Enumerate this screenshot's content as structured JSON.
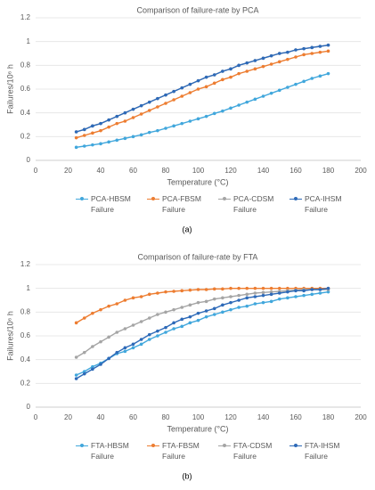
{
  "chart_data": [
    {
      "type": "line",
      "title": "Comparison of failure-rate by PCA",
      "x_label": "Temperature (°C)",
      "y_label": "Failures/10⁶ h",
      "caption": "(a)",
      "x": [
        25,
        30,
        35,
        40,
        45,
        50,
        55,
        60,
        65,
        70,
        75,
        80,
        85,
        90,
        95,
        100,
        105,
        110,
        115,
        120,
        125,
        130,
        135,
        140,
        145,
        150,
        155,
        160,
        165,
        170,
        175,
        180
      ],
      "xlim": [
        0,
        200
      ],
      "xticks": [
        0,
        20,
        40,
        60,
        80,
        100,
        120,
        140,
        160,
        180,
        200
      ],
      "ylim": [
        0,
        1.2
      ],
      "yticks": [
        0,
        0.2,
        0.4,
        0.6,
        0.8,
        1,
        1.2
      ],
      "grid": true,
      "series": [
        {
          "name": "PCA-HBSM Failure",
          "color": "#41a7dc",
          "values": [
            0.11,
            0.12,
            0.13,
            0.14,
            0.155,
            0.17,
            0.185,
            0.2,
            0.215,
            0.235,
            0.25,
            0.27,
            0.29,
            0.31,
            0.33,
            0.35,
            0.37,
            0.395,
            0.415,
            0.44,
            0.465,
            0.49,
            0.515,
            0.54,
            0.565,
            0.59,
            0.615,
            0.64,
            0.665,
            0.69,
            0.71,
            0.73
          ]
        },
        {
          "name": "PCA-FBSM Failure",
          "color": "#ed7d31",
          "values": [
            0.19,
            0.21,
            0.23,
            0.25,
            0.28,
            0.31,
            0.33,
            0.36,
            0.39,
            0.42,
            0.45,
            0.48,
            0.51,
            0.54,
            0.57,
            0.6,
            0.62,
            0.65,
            0.68,
            0.7,
            0.73,
            0.75,
            0.77,
            0.79,
            0.81,
            0.83,
            0.85,
            0.87,
            0.89,
            0.9,
            0.91,
            0.92
          ]
        },
        {
          "name": "PCA-CDSM Failure",
          "color": "#a5a5a5",
          "values": [
            0.24,
            0.26,
            0.29,
            0.31,
            0.34,
            0.37,
            0.4,
            0.43,
            0.46,
            0.49,
            0.52,
            0.55,
            0.58,
            0.61,
            0.64,
            0.67,
            0.7,
            0.72,
            0.75,
            0.77,
            0.8,
            0.82,
            0.84,
            0.86,
            0.88,
            0.9,
            0.91,
            0.93,
            0.94,
            0.95,
            0.96,
            0.97
          ]
        },
        {
          "name": "PCA-IHSM Failure",
          "color": "#2e6ab8",
          "values": [
            0.24,
            0.26,
            0.29,
            0.31,
            0.34,
            0.37,
            0.4,
            0.43,
            0.46,
            0.49,
            0.52,
            0.55,
            0.58,
            0.61,
            0.64,
            0.67,
            0.7,
            0.72,
            0.75,
            0.77,
            0.8,
            0.82,
            0.84,
            0.86,
            0.88,
            0.9,
            0.91,
            0.93,
            0.94,
            0.95,
            0.96,
            0.97
          ]
        }
      ]
    },
    {
      "type": "line",
      "title": "Comparison of failure-rate by FTA",
      "x_label": "Temperature (°C)",
      "y_label": "Failures/10⁶ h",
      "caption": "(b)",
      "x": [
        25,
        30,
        35,
        40,
        45,
        50,
        55,
        60,
        65,
        70,
        75,
        80,
        85,
        90,
        95,
        100,
        105,
        110,
        115,
        120,
        125,
        130,
        135,
        140,
        145,
        150,
        155,
        160,
        165,
        170,
        175,
        180
      ],
      "xlim": [
        0,
        200
      ],
      "xticks": [
        0,
        20,
        40,
        60,
        80,
        100,
        120,
        140,
        160,
        180,
        200
      ],
      "ylim": [
        0,
        1.2
      ],
      "yticks": [
        0,
        0.2,
        0.4,
        0.6,
        0.8,
        1,
        1.2
      ],
      "grid": true,
      "series": [
        {
          "name": "FTA-HBSM Failure",
          "color": "#41a7dc",
          "values": [
            0.27,
            0.3,
            0.34,
            0.37,
            0.41,
            0.45,
            0.47,
            0.5,
            0.53,
            0.57,
            0.6,
            0.63,
            0.66,
            0.68,
            0.71,
            0.73,
            0.76,
            0.78,
            0.8,
            0.82,
            0.84,
            0.85,
            0.87,
            0.88,
            0.89,
            0.91,
            0.92,
            0.93,
            0.94,
            0.95,
            0.96,
            0.97
          ]
        },
        {
          "name": "FTA-FBSM Failure",
          "color": "#ed7d31",
          "values": [
            0.71,
            0.75,
            0.79,
            0.82,
            0.85,
            0.87,
            0.9,
            0.92,
            0.93,
            0.95,
            0.96,
            0.97,
            0.975,
            0.98,
            0.985,
            0.99,
            0.99,
            0.995,
            0.995,
            1,
            1,
            1,
            1,
            1,
            1,
            1,
            1,
            1,
            1,
            1,
            1,
            1
          ]
        },
        {
          "name": "FTA-CDSM Failure",
          "color": "#a5a5a5",
          "values": [
            0.42,
            0.46,
            0.51,
            0.55,
            0.59,
            0.63,
            0.66,
            0.69,
            0.72,
            0.75,
            0.78,
            0.8,
            0.82,
            0.84,
            0.86,
            0.88,
            0.89,
            0.91,
            0.92,
            0.93,
            0.94,
            0.95,
            0.96,
            0.965,
            0.97,
            0.975,
            0.98,
            0.985,
            0.99,
            0.99,
            0.99,
            0.99
          ]
        },
        {
          "name": "FTA-IHSM Failure",
          "color": "#2e6ab8",
          "values": [
            0.24,
            0.28,
            0.32,
            0.36,
            0.41,
            0.46,
            0.5,
            0.53,
            0.57,
            0.61,
            0.64,
            0.67,
            0.71,
            0.74,
            0.76,
            0.79,
            0.81,
            0.83,
            0.86,
            0.88,
            0.9,
            0.92,
            0.93,
            0.94,
            0.95,
            0.96,
            0.97,
            0.98,
            0.98,
            0.99,
            0.99,
            1
          ]
        }
      ]
    }
  ]
}
